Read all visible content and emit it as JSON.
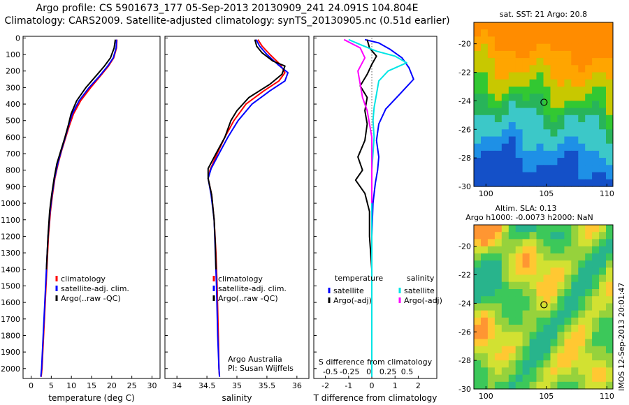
{
  "header": {
    "line1": "Argo profile: CS 5901673_177 05-Sep-2013 20130909_241 24.091S 104.804E",
    "line2": "Climatology: CARS2009. Satellite-adjusted climatology: synTS_20130905.nc (0.51d earlier)"
  },
  "colors": {
    "climatology": "#ff0000",
    "satellite": "#0000ff",
    "argo": "#000000",
    "sal_satellite": "#00e5e5",
    "sal_argo": "#ff00ff"
  },
  "depth_axis": {
    "ticks": [
      0,
      100,
      200,
      300,
      400,
      500,
      600,
      700,
      800,
      900,
      1000,
      1100,
      1200,
      1300,
      1400,
      1500,
      1600,
      1700,
      1800,
      1900,
      2000
    ]
  },
  "chart_data": [
    {
      "type": "line",
      "name": "temperature-panel",
      "xlabel": "temperature (deg C)",
      "xlim": [
        -2,
        32
      ],
      "ylim": [
        2060,
        -10
      ],
      "xticks": [
        0,
        5,
        10,
        15,
        20,
        25,
        30
      ],
      "legend": [
        "climatology",
        "satellite-adj. clim.",
        "Argo(..raw -QC)"
      ],
      "series": [
        {
          "color": "#ff0000",
          "points": [
            [
              21.3,
              10
            ],
            [
              21.2,
              60
            ],
            [
              20.5,
              120
            ],
            [
              19.2,
              170
            ],
            [
              17.2,
              230
            ],
            [
              14.8,
              300
            ],
            [
              12.3,
              380
            ],
            [
              10.5,
              460
            ],
            [
              9.5,
              530
            ],
            [
              8.6,
              600
            ],
            [
              7.6,
              680
            ],
            [
              6.7,
              760
            ],
            [
              5.9,
              850
            ],
            [
              5.3,
              950
            ],
            [
              4.8,
              1050
            ],
            [
              4.3,
              1200
            ],
            [
              3.9,
              1400
            ],
            [
              3.5,
              1600
            ],
            [
              3.1,
              1800
            ],
            [
              2.7,
              2000
            ],
            [
              2.5,
              2050
            ]
          ]
        },
        {
          "color": "#0000ff",
          "points": [
            [
              21.2,
              10
            ],
            [
              21.1,
              60
            ],
            [
              20.4,
              120
            ],
            [
              19.0,
              170
            ],
            [
              17.0,
              230
            ],
            [
              14.4,
              300
            ],
            [
              11.9,
              380
            ],
            [
              10.2,
              460
            ],
            [
              9.3,
              530
            ],
            [
              8.5,
              600
            ],
            [
              7.5,
              680
            ],
            [
              6.6,
              760
            ],
            [
              5.8,
              850
            ],
            [
              5.2,
              950
            ],
            [
              4.7,
              1050
            ],
            [
              4.2,
              1200
            ],
            [
              3.8,
              1400
            ],
            [
              3.4,
              1600
            ],
            [
              3.0,
              1800
            ],
            [
              2.6,
              2000
            ],
            [
              2.4,
              2050
            ]
          ]
        },
        {
          "color": "#000000",
          "points": [
            [
              20.9,
              10
            ],
            [
              20.6,
              60
            ],
            [
              19.7,
              120
            ],
            [
              18.2,
              170
            ],
            [
              16.1,
              230
            ],
            [
              13.6,
              300
            ],
            [
              11.3,
              380
            ],
            [
              9.9,
              460
            ],
            [
              9.2,
              530
            ],
            [
              8.4,
              600
            ],
            [
              7.4,
              680
            ],
            [
              6.4,
              760
            ],
            [
              5.7,
              850
            ],
            [
              5.1,
              950
            ],
            [
              4.6,
              1050
            ],
            [
              4.2,
              1200
            ],
            [
              3.8,
              1400
            ]
          ]
        }
      ]
    },
    {
      "type": "line",
      "name": "salinity-panel",
      "xlabel": "salinity",
      "xlim": [
        33.8,
        36.2
      ],
      "ylim": [
        2060,
        -10
      ],
      "xticks": [
        34,
        34.5,
        35,
        35.5,
        36
      ],
      "legend": [
        "climatology",
        "satellite-adj. clim.",
        "Argo(..raw -QC)"
      ],
      "notes": [
        "Argo Australia",
        "PI: Susan Wijffels"
      ],
      "series": [
        {
          "color": "#ff0000",
          "points": [
            [
              35.35,
              10
            ],
            [
              35.42,
              50
            ],
            [
              35.55,
              100
            ],
            [
              35.72,
              160
            ],
            [
              35.8,
              210
            ],
            [
              35.7,
              260
            ],
            [
              35.45,
              320
            ],
            [
              35.15,
              400
            ],
            [
              34.95,
              500
            ],
            [
              34.8,
              600
            ],
            [
              34.67,
              700
            ],
            [
              34.55,
              800
            ],
            [
              34.52,
              850
            ],
            [
              34.58,
              950
            ],
            [
              34.62,
              1100
            ],
            [
              34.65,
              1300
            ],
            [
              34.67,
              1500
            ],
            [
              34.69,
              1800
            ],
            [
              34.7,
              2000
            ],
            [
              34.71,
              2050
            ]
          ]
        },
        {
          "color": "#0000ff",
          "points": [
            [
              35.32,
              10
            ],
            [
              35.38,
              50
            ],
            [
              35.5,
              100
            ],
            [
              35.68,
              160
            ],
            [
              35.85,
              210
            ],
            [
              35.8,
              260
            ],
            [
              35.55,
              320
            ],
            [
              35.25,
              400
            ],
            [
              35.02,
              500
            ],
            [
              34.85,
              600
            ],
            [
              34.7,
              700
            ],
            [
              34.57,
              790
            ],
            [
              34.52,
              850
            ],
            [
              34.57,
              950
            ],
            [
              34.62,
              1100
            ],
            [
              34.64,
              1300
            ],
            [
              34.66,
              1500
            ],
            [
              34.68,
              1800
            ],
            [
              34.7,
              2000
            ],
            [
              34.71,
              2050
            ]
          ]
        },
        {
          "color": "#000000",
          "points": [
            [
              35.3,
              10
            ],
            [
              35.33,
              50
            ],
            [
              35.42,
              90
            ],
            [
              35.6,
              140
            ],
            [
              35.8,
              170
            ],
            [
              35.75,
              220
            ],
            [
              35.55,
              280
            ],
            [
              35.2,
              360
            ],
            [
              35.0,
              440
            ],
            [
              34.9,
              500
            ],
            [
              34.8,
              600
            ],
            [
              34.65,
              700
            ],
            [
              34.52,
              790
            ],
            [
              34.52,
              850
            ],
            [
              34.58,
              950
            ],
            [
              34.62,
              1100
            ],
            [
              34.64,
              1250
            ],
            [
              34.65,
              1400
            ]
          ]
        }
      ]
    },
    {
      "type": "line",
      "name": "difference-panel",
      "xlabel": "T difference from climatology",
      "xlabel_top": "S difference from climatology",
      "xlim": [
        -2.5,
        2.8
      ],
      "ylim": [
        2060,
        -10
      ],
      "xticks": [
        -2,
        -1,
        0,
        1,
        2
      ],
      "top_ticks": [
        "-0.5",
        "-0.25",
        "0",
        "0.25",
        "0.5"
      ],
      "top_tick_values": [
        -0.5,
        -0.25,
        0,
        0.25,
        0.5
      ],
      "legend_left": {
        "title": "temperature",
        "items": [
          "satellite",
          "Argo(-adj)"
        ]
      },
      "legend_right": {
        "title": "salinity",
        "items": [
          "satellite",
          "Argo(-adj)"
        ]
      },
      "series": [
        {
          "color": "#0000ff",
          "points": [
            [
              -0.3,
              10
            ],
            [
              0.3,
              30
            ],
            [
              0.8,
              70
            ],
            [
              1.3,
              120
            ],
            [
              1.6,
              180
            ],
            [
              1.8,
              250
            ],
            [
              1.2,
              340
            ],
            [
              0.6,
              430
            ],
            [
              0.3,
              520
            ],
            [
              0.2,
              620
            ],
            [
              0.3,
              720
            ],
            [
              0.25,
              800
            ],
            [
              0.15,
              880
            ],
            [
              0.05,
              1000
            ],
            [
              0.0,
              1200
            ],
            [
              0.0,
              1600
            ],
            [
              0.0,
              2050
            ]
          ]
        },
        {
          "color": "#000000",
          "points": [
            [
              -0.2,
              10
            ],
            [
              -0.1,
              60
            ],
            [
              0.2,
              110
            ],
            [
              0.0,
              160
            ],
            [
              -0.2,
              220
            ],
            [
              -0.5,
              290
            ],
            [
              -0.2,
              360
            ],
            [
              -0.3,
              440
            ],
            [
              -0.2,
              520
            ],
            [
              -0.3,
              620
            ],
            [
              -0.6,
              720
            ],
            [
              -0.4,
              800
            ],
            [
              -0.7,
              860
            ],
            [
              -0.3,
              940
            ],
            [
              -0.1,
              1050
            ],
            [
              -0.1,
              1200
            ],
            [
              0.0,
              1400
            ]
          ]
        },
        {
          "color": "#00e5e5",
          "points": [
            [
              -1.0,
              10
            ],
            [
              -0.5,
              40
            ],
            [
              0.2,
              80
            ],
            [
              1.0,
              110
            ],
            [
              1.5,
              150
            ],
            [
              0.7,
              200
            ],
            [
              0.3,
              260
            ],
            [
              0.2,
              340
            ],
            [
              0.1,
              420
            ],
            [
              0.05,
              500
            ],
            [
              0.1,
              600
            ],
            [
              0.05,
              700
            ],
            [
              0.0,
              800
            ],
            [
              0.0,
              1000
            ],
            [
              0.0,
              1400
            ],
            [
              0.0,
              2050
            ]
          ]
        },
        {
          "color": "#ff00ff",
          "points": [
            [
              -1.2,
              10
            ],
            [
              -0.5,
              60
            ],
            [
              -0.3,
              120
            ],
            [
              -0.6,
              200
            ],
            [
              -0.5,
              280
            ],
            [
              -0.4,
              360
            ],
            [
              -0.2,
              440
            ],
            [
              -0.1,
              520
            ],
            [
              0.0,
              600
            ],
            [
              0.0,
              700
            ],
            [
              0.0,
              800
            ],
            [
              0.0,
              1000
            ]
          ]
        }
      ]
    }
  ],
  "maps": [
    {
      "name": "sst-map",
      "title": "sat. SST: 21 Argo: 20.8",
      "xticks": [
        "100",
        "105",
        "110"
      ],
      "xtick_values": [
        100,
        105,
        110
      ],
      "yticks": [
        "-20",
        "-22",
        "-24",
        "-26",
        "-28",
        "-30"
      ],
      "ytick_values": [
        -20,
        -22,
        -24,
        -26,
        -28,
        -30
      ],
      "xlim": [
        99,
        110.5
      ],
      "ylim": [
        -30,
        -18.5
      ],
      "marker": [
        104.8,
        -24.1
      ]
    },
    {
      "name": "sla-map",
      "title1": "Altim. SLA: 0.13",
      "title2": "Argo h1000: -0.0073 h2000: NaN",
      "xticks": [
        "100",
        "105",
        "110"
      ],
      "xtick_values": [
        100,
        105,
        110
      ],
      "yticks": [
        "-20",
        "-22",
        "-24",
        "-26",
        "-28",
        "-30"
      ],
      "ytick_values": [
        -20,
        -22,
        -24,
        -26,
        -28,
        -30
      ],
      "xlim": [
        99,
        110.5
      ],
      "ylim": [
        -30,
        -18.5
      ],
      "marker": [
        104.8,
        -24.1
      ]
    }
  ],
  "timestamp": "IMOS 12-Sep-2013 20:01:47"
}
